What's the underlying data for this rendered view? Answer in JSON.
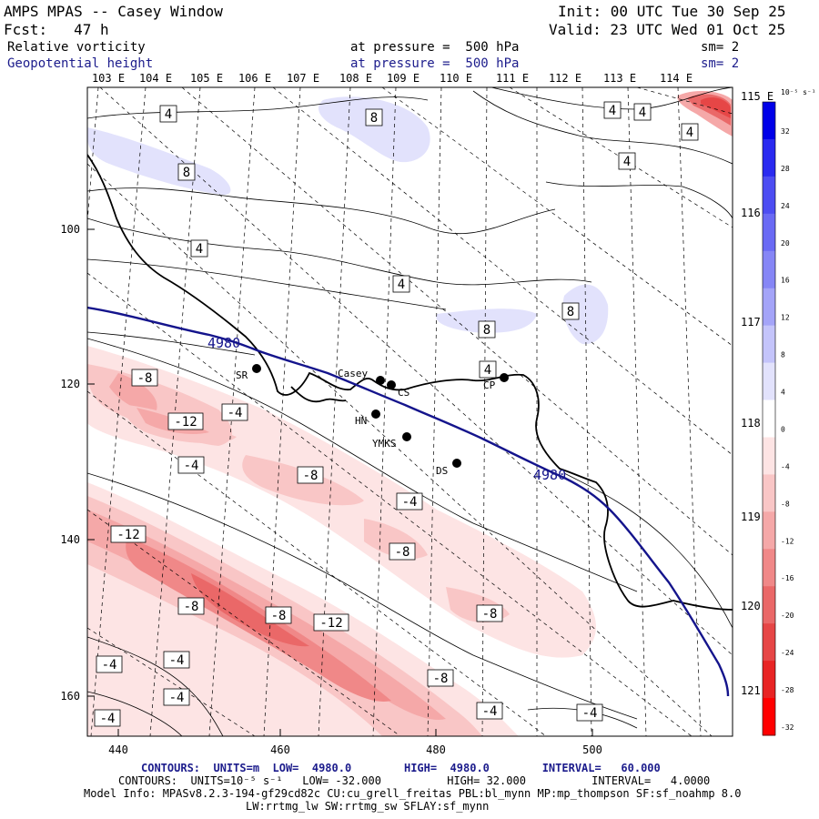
{
  "header": {
    "title": "AMPS MPAS -- Casey Window",
    "init": "Init: 00 UTC Tue 30 Sep 25",
    "fcst": "Fcst:   47 h",
    "valid": "Valid: 23 UTC Wed 01 Oct 25",
    "field1_name": "Relative vorticity",
    "field1_level": "at pressure =  500 hPa",
    "field1_sm": "sm= 2",
    "field2_name": "Geopotential height",
    "field2_level": "at pressure =  500 hPa",
    "field2_sm": "sm= 2"
  },
  "colors": {
    "height_contour": "#14148c",
    "text_blue": "#1c1c8c",
    "coast": "#000000"
  },
  "map": {
    "lon_top_labels": [
      "103 E",
      "104 E",
      "105 E",
      "106 E",
      "107 E",
      "108 E",
      "109 E",
      "110 E",
      "111 E",
      "112 E",
      "113 E",
      "114 E"
    ],
    "lon_right_labels": [
      "115 E",
      "116 E",
      "117 E",
      "118 E",
      "119 E",
      "120 E",
      "121 E"
    ],
    "x_axis_ticks": [
      "440",
      "460",
      "480",
      "500"
    ],
    "y_axis_ticks": [
      "100",
      "120",
      "140",
      "160"
    ],
    "height_contour_labels": [
      "4980",
      "4980"
    ],
    "vort_labels": [
      "4",
      "8",
      "8",
      "4",
      "4",
      "4",
      "4",
      "4",
      "8",
      "8",
      "4",
      "4",
      "-8",
      "-4",
      "-12",
      "-4",
      "-8",
      "-4",
      "-8",
      "-12",
      "-8",
      "-8",
      "-12",
      "-8",
      "-8",
      "-4",
      "-4",
      "-4",
      "-4",
      "-4",
      "-4"
    ],
    "stations": [
      {
        "name": "SR"
      },
      {
        "name": "Casey"
      },
      {
        "name": "CS"
      },
      {
        "name": "HN"
      },
      {
        "name": "YMKS"
      },
      {
        "name": "DS"
      },
      {
        "name": "CP"
      }
    ]
  },
  "colorbar": {
    "unit": "10⁻⁵ s⁻¹",
    "ticks": [
      "32",
      "28",
      "24",
      "20",
      "16",
      "12",
      "8",
      "4",
      "0",
      "-4",
      "-8",
      "-12",
      "-16",
      "-20",
      "-24",
      "-28",
      "-32"
    ],
    "colors": [
      "#0000e8",
      "#2a2af0",
      "#4d4df2",
      "#6a6af4",
      "#8686f6",
      "#a4a4f8",
      "#c4c4fa",
      "#e2e2fc",
      "#ffffff",
      "#fde4e4",
      "#f9c6c6",
      "#f5a8a8",
      "#f08888",
      "#ea6868",
      "#e64646",
      "#e82424",
      "#ff0000"
    ]
  },
  "footer": {
    "line1": "CONTOURS:  UNITS=m  LOW=  4980.0        HIGH=  4980.0        INTERVAL=   60.000",
    "line2": "CONTOURS:  UNITS=10⁻⁵ s⁻¹   LOW= -32.000          HIGH= 32.000          INTERVAL=   4.0000",
    "line3": "Model Info: MPASv8.2.3-194-gf29cd82c CU:cu_grell_freitas PBL:bl_mynn MP:mp_thompson SF:sf_noahmp 8.0",
    "line4": "LW:rrtmg_lw SW:rrtmg_sw SFLAY:sf_mynn"
  }
}
